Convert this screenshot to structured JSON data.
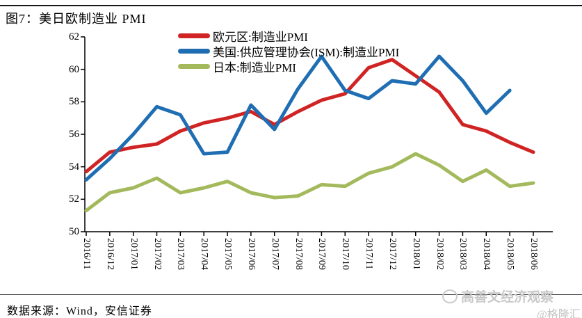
{
  "title": "图7：美日欧制造业 PMI",
  "source": "数据来源：Wind，安信证券",
  "watermark": {
    "brand": "高善文经济观察",
    "handle": "@格隆汇"
  },
  "colors": {
    "eurozone": "#d02323",
    "us": "#1f6eb3",
    "japan": "#a3b95c",
    "axis": "#000000",
    "top_rule": "#161616",
    "watermark_gray": "#c8c8c8"
  },
  "chart_data": {
    "type": "line",
    "title": "图7：美日欧制造业 PMI",
    "x": [
      "2016/11",
      "2016/12",
      "2017/01",
      "2017/02",
      "2017/03",
      "2017/04",
      "2017/05",
      "2017/06",
      "2017/07",
      "2017/08",
      "2017/09",
      "2017/10",
      "2017/11",
      "2017/12",
      "2018/01",
      "2018/02",
      "2018/03",
      "2018/04",
      "2018/05",
      "2018/06"
    ],
    "series": [
      {
        "key": "eurozone",
        "name": "欧元区:制造业PMI",
        "color": "#d02323",
        "values": [
          53.7,
          54.9,
          55.2,
          55.4,
          56.2,
          56.7,
          57.0,
          57.4,
          56.6,
          57.4,
          58.1,
          58.5,
          60.1,
          60.6,
          59.6,
          58.6,
          56.6,
          56.2,
          55.5,
          54.9
        ]
      },
      {
        "key": "us",
        "name": "美国:供应管理协会(ISM):制造业PMI",
        "color": "#1f6eb3",
        "values": [
          53.2,
          54.5,
          56.0,
          57.7,
          57.2,
          54.8,
          54.9,
          57.8,
          56.3,
          58.8,
          60.8,
          58.7,
          58.2,
          59.3,
          59.1,
          60.8,
          59.3,
          57.3,
          58.7
        ]
      },
      {
        "key": "japan",
        "name": "日本:制造业PMI",
        "color": "#a3b95c",
        "values": [
          51.3,
          52.4,
          52.7,
          53.3,
          52.4,
          52.7,
          53.1,
          52.4,
          52.1,
          52.2,
          52.9,
          52.8,
          53.6,
          54.0,
          54.8,
          54.1,
          53.1,
          53.8,
          52.8,
          53.0
        ]
      }
    ],
    "ylim": [
      50,
      62
    ],
    "y_ticks": [
      62,
      60,
      58,
      56,
      54,
      52,
      50
    ],
    "grid": false,
    "legend_position": "top-center"
  }
}
